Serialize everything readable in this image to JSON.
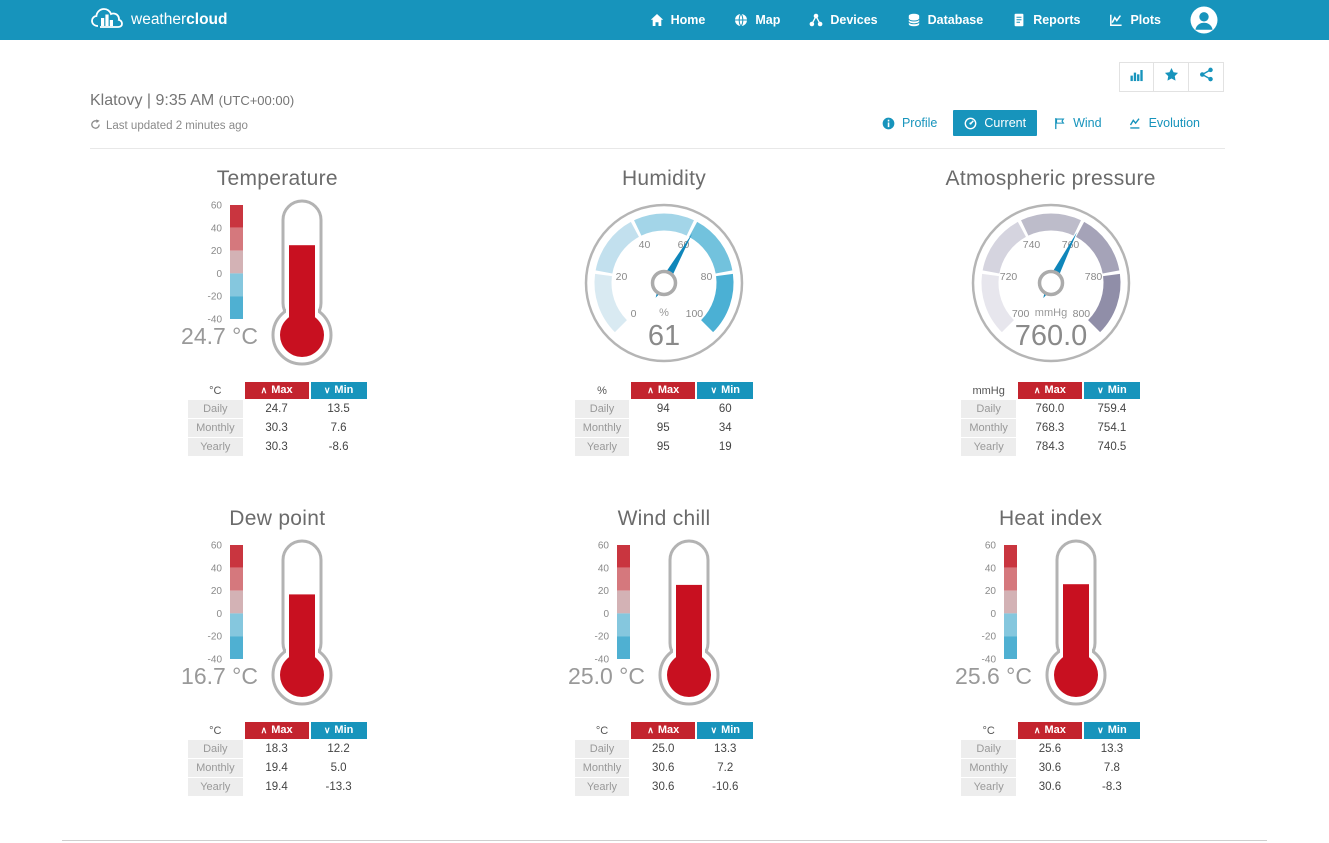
{
  "nav": {
    "brand_weather": "weather",
    "brand_cloud": "cloud",
    "items": [
      {
        "label": "Home",
        "icon": "home-icon"
      },
      {
        "label": "Map",
        "icon": "globe-icon"
      },
      {
        "label": "Devices",
        "icon": "devices-icon"
      },
      {
        "label": "Database",
        "icon": "database-icon"
      },
      {
        "label": "Reports",
        "icon": "reports-icon"
      },
      {
        "label": "Plots",
        "icon": "plots-icon"
      }
    ]
  },
  "header": {
    "location": "Klatovy | 9:35 AM",
    "timezone": "(UTC+00:00)",
    "last_updated": "Last updated 2 minutes ago"
  },
  "actions": [
    {
      "name": "stats",
      "icon": "bar-chart-icon"
    },
    {
      "name": "favorite",
      "icon": "star-icon"
    },
    {
      "name": "share",
      "icon": "share-icon"
    }
  ],
  "tabs": [
    {
      "label": "Profile",
      "icon": "info-icon",
      "active": false
    },
    {
      "label": "Current",
      "icon": "gauge-icon",
      "active": true
    },
    {
      "label": "Wind",
      "icon": "flag-icon",
      "active": false
    },
    {
      "label": "Evolution",
      "icon": "line-chart-icon",
      "active": false
    }
  ],
  "table_header": {
    "max": "Max",
    "min": "Min"
  },
  "icons": {
    "chevron_up": "∧",
    "chevron_down": "∨"
  },
  "panels": [
    {
      "id": "temperature",
      "type": "thermometer",
      "title": "Temperature",
      "value": 24.7,
      "display": "24.7 °C",
      "unit": "°C",
      "scale_labels": [
        "60",
        "40",
        "20",
        "0",
        "-20",
        "-40"
      ],
      "scale_min": -40,
      "scale_max": 60,
      "table": {
        "unit": "°C",
        "rows": [
          [
            "Daily",
            "24.7",
            "13.5"
          ],
          [
            "Monthly",
            "30.3",
            "7.6"
          ],
          [
            "Yearly",
            "30.3",
            "-8.6"
          ]
        ]
      }
    },
    {
      "id": "humidity",
      "type": "gauge",
      "title": "Humidity",
      "value": 61,
      "display": "61",
      "unit": "%",
      "min": 0,
      "max": 100,
      "ticks": [
        "0",
        "20",
        "40",
        "60",
        "80",
        "100"
      ],
      "palette": "blue",
      "table": {
        "unit": "%",
        "rows": [
          [
            "Daily",
            "94",
            "60"
          ],
          [
            "Monthly",
            "95",
            "34"
          ],
          [
            "Yearly",
            "95",
            "19"
          ]
        ]
      }
    },
    {
      "id": "pressure",
      "type": "gauge",
      "title": "Atmospheric pressure",
      "value": 760.0,
      "display": "760.0",
      "unit": "mmHg",
      "min": 700,
      "max": 800,
      "ticks": [
        "700",
        "720",
        "740",
        "760",
        "780",
        "800"
      ],
      "palette": "purple",
      "table": {
        "unit": "mmHg",
        "rows": [
          [
            "Daily",
            "760.0",
            "759.4"
          ],
          [
            "Monthly",
            "768.3",
            "754.1"
          ],
          [
            "Yearly",
            "784.3",
            "740.5"
          ]
        ]
      }
    },
    {
      "id": "dew-point",
      "type": "thermometer",
      "title": "Dew point",
      "value": 16.7,
      "display": "16.7 °C",
      "unit": "°C",
      "scale_labels": [
        "60",
        "40",
        "20",
        "0",
        "-20",
        "-40"
      ],
      "scale_min": -40,
      "scale_max": 60,
      "table": {
        "unit": "°C",
        "rows": [
          [
            "Daily",
            "18.3",
            "12.2"
          ],
          [
            "Monthly",
            "19.4",
            "5.0"
          ],
          [
            "Yearly",
            "19.4",
            "-13.3"
          ]
        ]
      }
    },
    {
      "id": "wind-chill",
      "type": "thermometer",
      "title": "Wind chill",
      "value": 25.0,
      "display": "25.0 °C",
      "unit": "°C",
      "scale_labels": [
        "60",
        "40",
        "20",
        "0",
        "-20",
        "-40"
      ],
      "scale_min": -40,
      "scale_max": 60,
      "table": {
        "unit": "°C",
        "rows": [
          [
            "Daily",
            "25.0",
            "13.3"
          ],
          [
            "Monthly",
            "30.6",
            "7.2"
          ],
          [
            "Yearly",
            "30.6",
            "-10.6"
          ]
        ]
      }
    },
    {
      "id": "heat-index",
      "type": "thermometer",
      "title": "Heat index",
      "value": 25.6,
      "display": "25.6 °C",
      "unit": "°C",
      "scale_labels": [
        "60",
        "40",
        "20",
        "0",
        "-20",
        "-40"
      ],
      "scale_min": -40,
      "scale_max": 60,
      "table": {
        "unit": "°C",
        "rows": [
          [
            "Daily",
            "25.6",
            "13.3"
          ],
          [
            "Monthly",
            "30.6",
            "7.8"
          ],
          [
            "Yearly",
            "30.6",
            "-8.3"
          ]
        ]
      }
    }
  ],
  "colors": {
    "navbar_bg": "#1794bc",
    "accent_blue": "#1794bc",
    "max_red": "#c3242e",
    "needle_blue": "#0f86ba",
    "mercury_red": "#c81020",
    "gauge_outline": "#b5b5b5",
    "thermo_scale": [
      "#c9353f",
      "#d5787d",
      "#d3b2b5",
      "#85c7de",
      "#4fb0d2"
    ],
    "gauge_segments_blue": [
      "#d9eaf2",
      "#c2e0ee",
      "#a3d5e8",
      "#72c2dd",
      "#4bb0d4"
    ],
    "gauge_segments_purple": [
      "#e7e6ed",
      "#d5d4df",
      "#bdbcca",
      "#a5a3b8",
      "#908ea8"
    ]
  }
}
